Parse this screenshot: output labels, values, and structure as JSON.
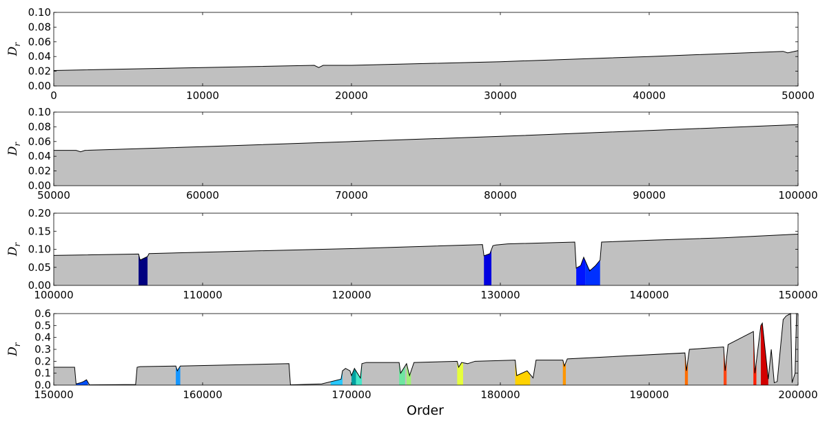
{
  "figure": {
    "xlabel": "Order"
  },
  "chart_data": [
    {
      "type": "area",
      "ylabel": "D_r",
      "xlim": [
        0,
        50000
      ],
      "ylim": [
        0,
        0.1
      ],
      "xticks": [
        0,
        10000,
        20000,
        30000,
        40000,
        50000
      ],
      "yticks": [
        0.0,
        0.02,
        0.04,
        0.06,
        0.08,
        0.1
      ],
      "ytick_labels": [
        "0.00",
        "0.02",
        "0.04",
        "0.06",
        "0.08",
        "0.10"
      ],
      "grid": false,
      "fill_color": "#c0c0c0",
      "series": [
        {
          "x": [
            0,
            10000,
            17500,
            17800,
            18100,
            20000,
            30000,
            40000,
            49000,
            49300,
            50000
          ],
          "y": [
            0.021,
            0.025,
            0.028,
            0.025,
            0.028,
            0.028,
            0.033,
            0.04,
            0.047,
            0.045,
            0.048
          ]
        }
      ],
      "colored_regions": []
    },
    {
      "type": "area",
      "ylabel": "D_r",
      "xlim": [
        50000,
        100000
      ],
      "ylim": [
        0,
        0.1
      ],
      "xticks": [
        50000,
        60000,
        70000,
        80000,
        90000,
        100000
      ],
      "yticks": [
        0.0,
        0.02,
        0.04,
        0.06,
        0.08,
        0.1
      ],
      "ytick_labels": [
        "0.00",
        "0.02",
        "0.04",
        "0.06",
        "0.08",
        "0.10"
      ],
      "grid": false,
      "fill_color": "#c0c0c0",
      "series": [
        {
          "x": [
            50000,
            51500,
            51800,
            52100,
            60000,
            70000,
            80000,
            90000,
            100000
          ],
          "y": [
            0.048,
            0.048,
            0.046,
            0.048,
            0.053,
            0.06,
            0.067,
            0.075,
            0.083
          ]
        }
      ],
      "colored_regions": []
    },
    {
      "type": "area",
      "ylabel": "D_r",
      "xlim": [
        100000,
        150000
      ],
      "ylim": [
        0,
        0.2
      ],
      "xticks": [
        100000,
        110000,
        120000,
        130000,
        140000,
        150000
      ],
      "yticks": [
        0.0,
        0.05,
        0.1,
        0.15,
        0.2
      ],
      "ytick_labels": [
        "0.00",
        "0.05",
        "0.10",
        "0.15",
        "0.20"
      ],
      "grid": false,
      "fill_color": "#c0c0c0",
      "series": [
        {
          "x": [
            100000,
            105700,
            105800,
            106300,
            106400,
            110000,
            120000,
            128800,
            128900,
            129300,
            129500,
            129700,
            130500,
            135000,
            135100,
            135400,
            135600,
            136000,
            136400,
            136700,
            136800,
            140000,
            145000,
            150000
          ],
          "y": [
            0.083,
            0.087,
            0.07,
            0.08,
            0.088,
            0.092,
            0.102,
            0.113,
            0.082,
            0.088,
            0.11,
            0.112,
            0.115,
            0.12,
            0.048,
            0.055,
            0.078,
            0.04,
            0.055,
            0.07,
            0.12,
            0.125,
            0.132,
            0.142
          ]
        }
      ],
      "colored_regions": [
        {
          "x0": 105700,
          "x1": 106300,
          "color": "#000080"
        },
        {
          "x0": 128900,
          "x1": 129400,
          "color": "#0000e0"
        },
        {
          "x0": 135100,
          "x1": 135700,
          "color": "#0014ff"
        },
        {
          "x0": 135700,
          "x1": 136700,
          "color": "#0030ff"
        }
      ]
    },
    {
      "type": "area",
      "ylabel": "D_r",
      "xlabel": "Order",
      "xlim": [
        150000,
        200000
      ],
      "ylim": [
        0,
        0.6
      ],
      "xticks": [
        150000,
        160000,
        170000,
        180000,
        190000,
        200000
      ],
      "yticks": [
        0.0,
        0.1,
        0.2,
        0.3,
        0.4,
        0.5,
        0.6
      ],
      "ytick_labels": [
        "0.0",
        "0.1",
        "0.2",
        "0.3",
        "0.4",
        "0.5",
        "0.6"
      ],
      "grid": false,
      "fill_color": "#c0c0c0",
      "series": [
        {
          "x": [
            150000,
            151400,
            151500,
            151800,
            152000,
            152200,
            152400,
            155500,
            155600,
            155800,
            158200,
            158300,
            158500,
            165800,
            165900,
            168000,
            169300,
            169400,
            169600,
            169900,
            170000,
            170200,
            170600,
            170700,
            171000,
            173200,
            173300,
            173700,
            173900,
            174200,
            177100,
            177200,
            177400,
            177800,
            178300,
            181000,
            181100,
            181800,
            182200,
            182400,
            184200,
            184300,
            184500,
            192400,
            192500,
            192700,
            195000,
            195100,
            195300,
            197000,
            197100,
            197500,
            197600,
            198000,
            198200,
            198400,
            198600,
            199000,
            199200,
            199500,
            199600,
            199800,
            199900,
            200000
          ],
          "y": [
            0.15,
            0.15,
            0.01,
            0.02,
            0.03,
            0.045,
            0.002,
            0.005,
            0.15,
            0.155,
            0.16,
            0.12,
            0.16,
            0.18,
            0.002,
            0.01,
            0.05,
            0.12,
            0.14,
            0.12,
            0.08,
            0.14,
            0.06,
            0.18,
            0.19,
            0.19,
            0.1,
            0.18,
            0.08,
            0.19,
            0.2,
            0.15,
            0.19,
            0.18,
            0.2,
            0.21,
            0.08,
            0.12,
            0.06,
            0.21,
            0.21,
            0.16,
            0.22,
            0.27,
            0.12,
            0.3,
            0.32,
            0.12,
            0.34,
            0.45,
            0.1,
            0.5,
            0.52,
            0.05,
            0.3,
            0.02,
            0.03,
            0.55,
            0.58,
            0.6,
            0.02,
            0.1,
            0.6,
            0.6
          ]
        }
      ],
      "colored_regions": [
        {
          "x0": 151500,
          "x1": 152300,
          "color": "#0050ff"
        },
        {
          "x0": 158200,
          "x1": 158500,
          "color": "#1496ff"
        },
        {
          "x0": 168600,
          "x1": 169400,
          "color": "#28c8ff"
        },
        {
          "x0": 170000,
          "x1": 170300,
          "color": "#00a0a0"
        },
        {
          "x0": 170300,
          "x1": 170700,
          "color": "#46e6c8"
        },
        {
          "x0": 173200,
          "x1": 173600,
          "color": "#6ee6a0"
        },
        {
          "x0": 173700,
          "x1": 174000,
          "color": "#a0f078"
        },
        {
          "x0": 177100,
          "x1": 177500,
          "color": "#e6ff3c"
        },
        {
          "x0": 181000,
          "x1": 182000,
          "color": "#ffd200"
        },
        {
          "x0": 184200,
          "x1": 184400,
          "color": "#ff9600"
        },
        {
          "x0": 192400,
          "x1": 192600,
          "color": "#ff6e00"
        },
        {
          "x0": 195000,
          "x1": 195200,
          "color": "#ff4614"
        },
        {
          "x0": 197000,
          "x1": 197200,
          "color": "#ff1e00"
        },
        {
          "x0": 197500,
          "x1": 198000,
          "color": "#d20000"
        }
      ]
    }
  ]
}
